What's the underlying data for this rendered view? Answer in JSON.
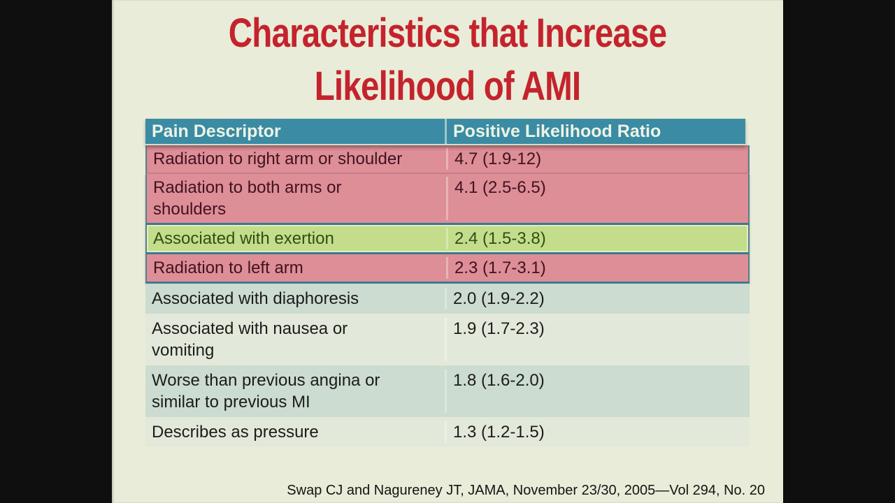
{
  "slide": {
    "title_line1": "Characteristics that Increase",
    "title_line2": "Likelihood of AMI",
    "citation": "Swap CJ and Nagureney JT,  JAMA, November 23/30, 2005—Vol 294, No. 20"
  },
  "table": {
    "headers": [
      "Pain Descriptor",
      "Positive Likelihood Ratio"
    ],
    "rows": [
      {
        "descriptor": "Radiation to right arm or shoulder",
        "ratio": "4.7 (1.9-12)",
        "highlight": "pink"
      },
      {
        "descriptor": "Radiation to both arms or\nshoulders",
        "ratio": "4.1 (2.5-6.5)",
        "highlight": "pink"
      },
      {
        "descriptor": "Associated with exertion",
        "ratio": "2.4 (1.5-3.8)",
        "highlight": "green"
      },
      {
        "descriptor": "Radiation to left arm",
        "ratio": "2.3 (1.7-3.1)",
        "highlight": "pink"
      },
      {
        "descriptor": "Associated with diaphoresis",
        "ratio": "2.0 (1.9-2.2)",
        "highlight": "pale-dark"
      },
      {
        "descriptor": "Associated with nausea or\nvomiting",
        "ratio": "1.9 (1.7-2.3)",
        "highlight": "pale-light"
      },
      {
        "descriptor": "Worse than previous angina or\nsimilar to previous MI",
        "ratio": "1.8 (1.6-2.0)",
        "highlight": "pale-dark"
      },
      {
        "descriptor": "Describes as pressure",
        "ratio": "1.3 (1.2-1.5)",
        "highlight": "pale-light"
      }
    ]
  },
  "chart_data": {
    "type": "table",
    "title": "Characteristics that Increase Likelihood of AMI",
    "columns": [
      "Pain Descriptor",
      "Positive Likelihood Ratio"
    ],
    "rows": [
      [
        "Radiation to right arm or shoulder",
        "4.7 (1.9-12)"
      ],
      [
        "Radiation to both arms or shoulders",
        "4.1 (2.5-6.5)"
      ],
      [
        "Associated with exertion",
        "2.4 (1.5-3.8)"
      ],
      [
        "Radiation to left arm",
        "2.3 (1.7-3.1)"
      ],
      [
        "Associated with diaphoresis",
        "2.0 (1.9-2.2)"
      ],
      [
        "Associated with nausea or vomiting",
        "1.9 (1.7-2.3)"
      ],
      [
        "Worse than previous angina or similar to previous MI",
        "1.8 (1.6-2.0)"
      ],
      [
        "Describes as pressure",
        "1.3 (1.2-1.5)"
      ]
    ]
  },
  "colors": {
    "bg": "#e9ecd8",
    "title_red": "#c4232d",
    "header_teal": "#3a8ba3",
    "pink": "#dd8e97",
    "green": "#c3dd8b",
    "pale_dark": "#ccdcd0",
    "pale_light": "#e3e9da",
    "letterbox_black": "#0f0f0f"
  }
}
